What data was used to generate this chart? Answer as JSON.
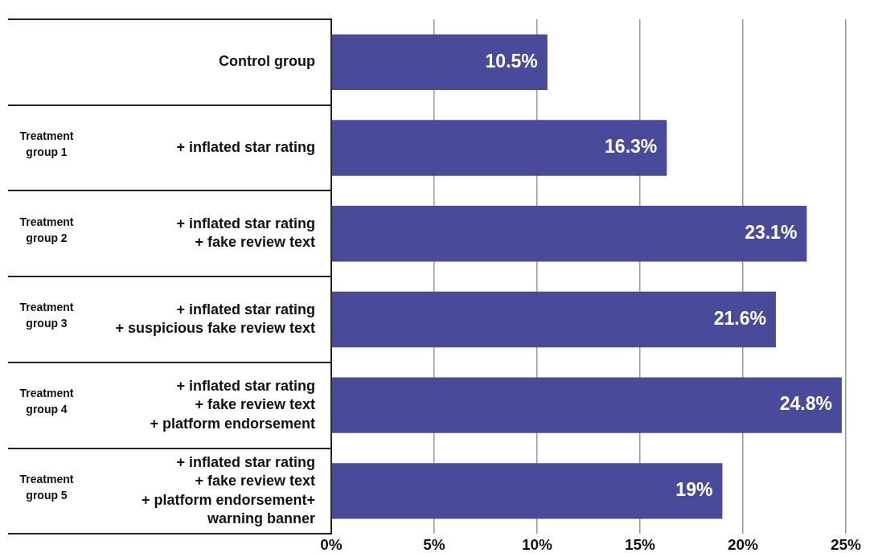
{
  "chart_data": {
    "type": "bar",
    "orientation": "horizontal",
    "categories": [
      "Control group",
      "+ inflated star rating",
      "+ inflated star rating\n+ fake review text",
      "+ inflated star rating\n+ suspicious fake review text",
      "+ inflated star rating\n+ fake review text\n+ platform endorsement",
      "+ inflated star rating\n+ fake review text\n+ platform endorsement+\nwarning banner"
    ],
    "values": [
      10.5,
      16.3,
      23.1,
      21.6,
      24.8,
      19
    ],
    "value_labels": [
      "10.5%",
      "16.3%",
      "23.1%",
      "21.6%",
      "24.8%",
      "19%"
    ],
    "color": "#4a4a9a",
    "xlim": [
      0,
      25
    ],
    "xticks": [
      {
        "value": 0,
        "label": "0%"
      },
      {
        "value": 5,
        "label": "5%"
      },
      {
        "value": 10,
        "label": "10%"
      },
      {
        "value": 15,
        "label": "15%"
      },
      {
        "value": 20,
        "label": "20%"
      },
      {
        "value": 25,
        "label": "25%"
      }
    ],
    "grid": "x",
    "annotations": [
      "Treatment group 1",
      "Treatment group 2",
      "Treatment group 3",
      "Treatment group 4",
      "Treatment group 5"
    ]
  }
}
